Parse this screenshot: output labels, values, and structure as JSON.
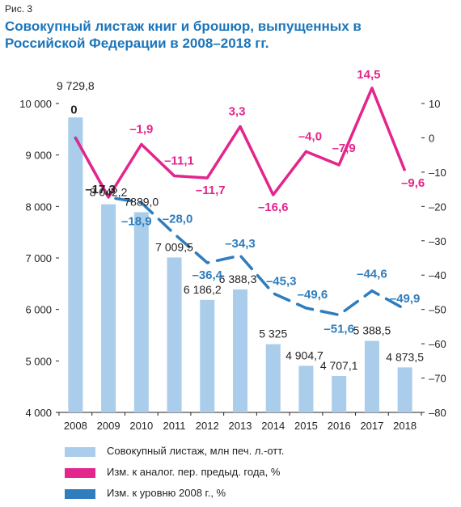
{
  "figure_label": "Рис. 3",
  "colors": {
    "bars": "#a9cdea",
    "yoy": "#e3258c",
    "base2008": "#2f7dbd",
    "title": "#1b75bb",
    "text": "#231f20"
  },
  "chart_data": {
    "type": "bar",
    "title": "Совокупный листаж книг и брошюр, выпущенных в Российской Федерации в 2008–2018 гг.",
    "categories": [
      "2008",
      "2009",
      "2010",
      "2011",
      "2012",
      "2013",
      "2014",
      "2015",
      "2016",
      "2017",
      "2018"
    ],
    "left_axis": {
      "ylim": [
        4000,
        10000
      ],
      "ticks": [
        "4 000",
        "5 000",
        "6 000",
        "7 000",
        "8 000",
        "9 000",
        "10 000"
      ],
      "tick_values": [
        4000,
        5000,
        6000,
        7000,
        8000,
        9000,
        10000
      ]
    },
    "right_axis": {
      "ylim": [
        -80,
        10
      ],
      "ticks": [
        "10",
        "0",
        "–10",
        "–20",
        "–30",
        "–40",
        "–50",
        "–60",
        "–70",
        "–80"
      ],
      "tick_values": [
        10,
        0,
        -10,
        -20,
        -30,
        -40,
        -50,
        -60,
        -70,
        -80
      ]
    },
    "series": [
      {
        "name": "Совокупный листаж, млн печ. л.-отт.",
        "type": "bar",
        "axis": "left",
        "values": [
          9729.8,
          8042.2,
          7889.0,
          7009.5,
          6186.2,
          6388.3,
          5325,
          4904.7,
          4707.1,
          5388.5,
          4873.5
        ],
        "labels": [
          "9 729,8",
          "8 042,2",
          "7889,0",
          "7 009,5",
          "6 186,2",
          "6 388,3",
          "5 325",
          "4 904,7",
          "4 707,1",
          "5 388,5",
          "4 873,5"
        ]
      },
      {
        "name": "Изм. к аналог. пер. предыд. года, %",
        "type": "line",
        "axis": "right",
        "values": [
          0,
          -17.3,
          -1.9,
          -11.1,
          -11.7,
          3.3,
          -16.6,
          -4.0,
          -7.9,
          14.5,
          -9.6
        ],
        "labels": [
          "0",
          "–17,3",
          "–1,9",
          "–11,1",
          "–11,7",
          "3,3",
          "–16,6",
          "–4,0",
          "–7,9",
          "14,5",
          "–9,6"
        ]
      },
      {
        "name": "Изм. к уровню 2008 г., %",
        "type": "line",
        "axis": "right",
        "style": "dashed",
        "values": [
          0,
          -17.3,
          -18.9,
          -28.0,
          -36.4,
          -34.3,
          -45.3,
          -49.6,
          -51.6,
          -44.6,
          -49.9
        ],
        "labels": [
          "",
          "",
          "–18,9",
          "–28,0",
          "–36,4",
          "–34,3",
          "–45,3",
          "–49,6",
          "–51,6",
          "–44,6",
          "–49,9"
        ]
      }
    ]
  }
}
